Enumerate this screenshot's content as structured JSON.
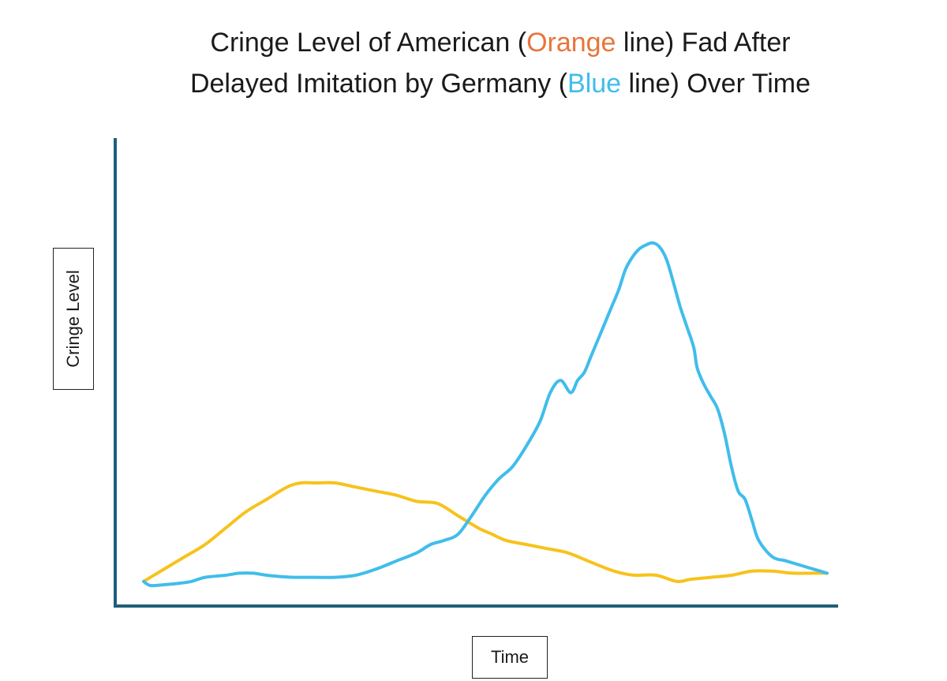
{
  "title": {
    "line1_prefix": "Cringe Level of American (",
    "line1_highlight": "Orange",
    "line1_suffix": " line) Fad After",
    "line2_prefix": "Delayed Imitation by Germany (",
    "line2_highlight": "Blue",
    "line2_suffix": " line) Over Time",
    "highlight_colors": {
      "orange": "#E8743B",
      "blue": "#40BDEB"
    }
  },
  "axis_color": "#1F5F7A",
  "chart_data": {
    "type": "line",
    "title": "Cringe Level of American (Orange line) Fad After Delayed Imitation by Germany (Blue line) Over Time",
    "xlabel": "Time",
    "ylabel": "Cringe Level",
    "xlim": [
      0,
      100
    ],
    "ylim": [
      0,
      100
    ],
    "grid": false,
    "ticks": false,
    "series": [
      {
        "name": "Orange",
        "color": "#F7C21B",
        "x": [
          0,
          2,
          4,
          6,
          9,
          12,
          15,
          18,
          21,
          23,
          25,
          28,
          31,
          34,
          37,
          40,
          43,
          46,
          49,
          51,
          53,
          56,
          59,
          62,
          65,
          68,
          70,
          72,
          75,
          78,
          80,
          83,
          86,
          89,
          92,
          95,
          98,
          100
        ],
        "y": [
          6,
          8,
          10,
          12,
          15,
          19,
          23,
          26,
          29,
          30,
          30,
          30,
          29,
          28,
          27,
          25.5,
          25,
          22,
          19,
          17.5,
          16,
          15,
          14,
          13,
          11,
          9,
          8,
          7.5,
          7.5,
          6,
          6.5,
          7,
          7.5,
          8.5,
          8.5,
          8,
          8,
          8
        ]
      },
      {
        "name": "Blue",
        "color": "#40BDEB",
        "x": [
          0,
          1,
          3,
          5,
          7,
          9,
          12,
          14,
          16,
          18,
          20,
          22,
          25,
          28,
          31,
          34,
          37,
          40,
          42,
          44,
          46,
          48,
          50,
          52,
          54,
          56,
          58,
          59.5,
          61,
          62.5,
          63.5,
          64.5,
          65.5,
          66.5,
          67.5,
          68.5,
          69.5,
          70.5,
          71.5,
          72.5,
          73.5,
          74.5,
          75.5,
          76.5,
          77.5,
          78.5,
          79.5,
          80.5,
          81,
          82,
          83,
          84,
          85,
          86,
          87,
          88,
          89,
          90,
          92,
          94,
          96,
          98,
          100
        ],
        "y": [
          6,
          5,
          5.2,
          5.5,
          6,
          7,
          7.5,
          8,
          8,
          7.5,
          7.2,
          7,
          7,
          7,
          7.5,
          9,
          11,
          13,
          15,
          16,
          17.5,
          22,
          27,
          31,
          34,
          39,
          45,
          52,
          55,
          52,
          55,
          57,
          61,
          65,
          69,
          73,
          77,
          82,
          85,
          87,
          88,
          88.5,
          87.5,
          84.5,
          79,
          73,
          68,
          63,
          58,
          54,
          51,
          48,
          42,
          34,
          28,
          26,
          21,
          16,
          12,
          11,
          10,
          9,
          8
        ]
      }
    ]
  }
}
